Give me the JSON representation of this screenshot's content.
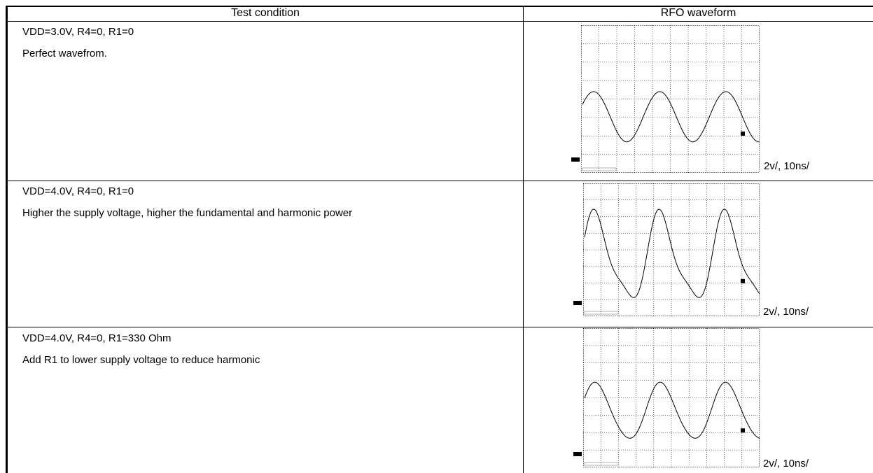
{
  "table": {
    "header": [
      "Test condition",
      "RFO waveform"
    ],
    "rows": [
      {
        "condition": "VDD=3.0V, R4=0, R1=0",
        "note": "Perfect wavefrom.",
        "scale": "2v/, 10ns/"
      },
      {
        "condition": "VDD=4.0V, R4=0, R1=0",
        "note": "Higher the supply voltage, higher the fundamental and harmonic power",
        "scale": "2v/, 10ns/"
      },
      {
        "condition": "VDD=4.0V, R4=0, R1=330 Ohm",
        "note": "Add R1 to lower supply voltage to reduce harmonic",
        "scale": "2v/, 10ns/"
      }
    ]
  }
}
